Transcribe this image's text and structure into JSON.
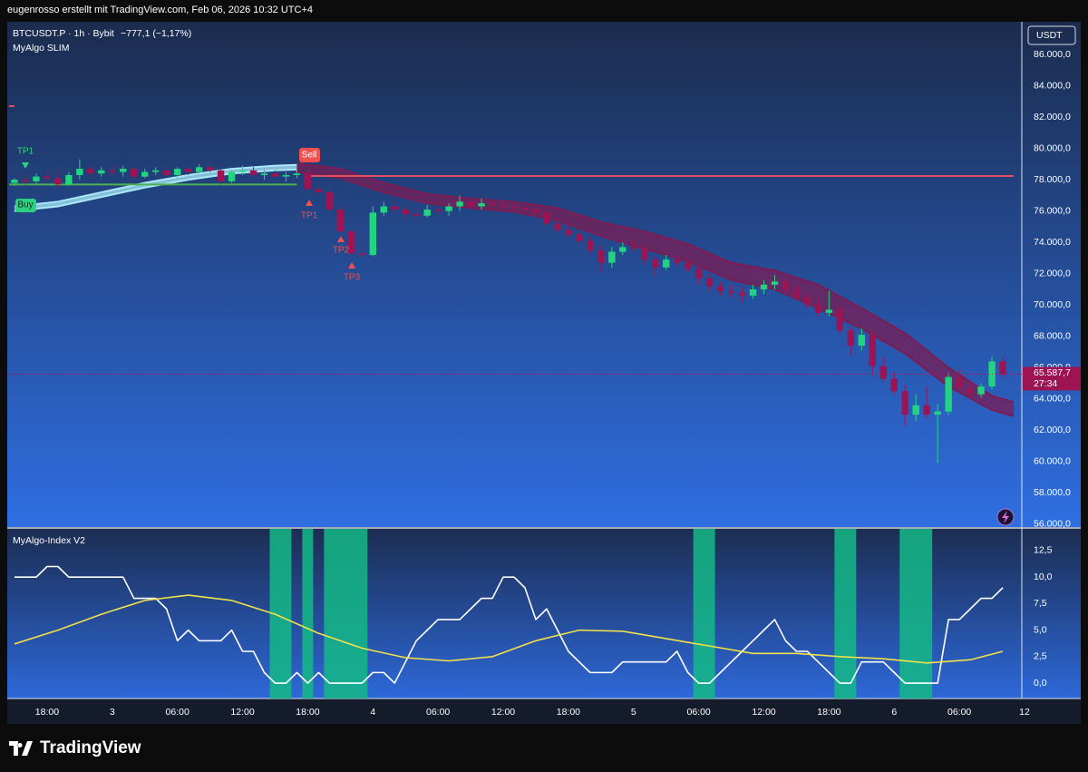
{
  "header": {
    "top_bar": "eugenrosso erstellt mit TradingView.com, Feb 06, 2026 10:32 UTC+4",
    "symbol": "BTCUSDT.P · 1h · Bybit",
    "change": "−777,1 (−1,17%)",
    "indicator": "MyAlgo SLIM",
    "currency": "USDT"
  },
  "footer": {
    "brand": "TradingView"
  },
  "chart_data": [
    {
      "type": "candlestick",
      "up_color": "#22d37f",
      "down_color": "#9c1552",
      "xlim": [
        -3.5,
        90
      ],
      "ylim": [
        55880,
        88030
      ],
      "grid": false,
      "yticks": [
        {
          "value": 56000,
          "label": "56.000,0"
        },
        {
          "value": 58000,
          "label": "58.000,0"
        },
        {
          "value": 60000,
          "label": "60.000,0"
        },
        {
          "value": 62000,
          "label": "62.000,0"
        },
        {
          "value": 64000,
          "label": "64.000,0"
        },
        {
          "value": 66000,
          "label": "66.000,0"
        },
        {
          "value": 68000,
          "label": "68.000,0"
        },
        {
          "value": 70000,
          "label": "70.000,0"
        },
        {
          "value": 72000,
          "label": "72.000,0"
        },
        {
          "value": 74000,
          "label": "74.000,0"
        },
        {
          "value": 76000,
          "label": "76.000,0"
        },
        {
          "value": 78000,
          "label": "78.000,0"
        },
        {
          "value": 80000,
          "label": "80.000,0"
        },
        {
          "value": 82000,
          "label": "82.000,0"
        },
        {
          "value": 84000,
          "label": "84.000,0"
        },
        {
          "value": 86000,
          "label": "86.000,0"
        }
      ],
      "x": [
        -3,
        -2,
        -1,
        0,
        1,
        2,
        3,
        4,
        5,
        6,
        7,
        8,
        9,
        10,
        11,
        12,
        13,
        14,
        15,
        16,
        17,
        18,
        19,
        20,
        21,
        22,
        23,
        24,
        25,
        26,
        27,
        28,
        29,
        30,
        31,
        32,
        33,
        34,
        35,
        36,
        37,
        38,
        39,
        40,
        41,
        42,
        43,
        44,
        45,
        46,
        47,
        48,
        49,
        50,
        51,
        52,
        53,
        54,
        55,
        56,
        57,
        58,
        59,
        60,
        61,
        62,
        63,
        64,
        65,
        66,
        67,
        68,
        69,
        70,
        71,
        72,
        73,
        74,
        75,
        76,
        77,
        78,
        79,
        80,
        81,
        82,
        83,
        84,
        85,
        86,
        87,
        88
      ],
      "open": [
        77800,
        78000,
        77900,
        78200,
        78100,
        77700,
        78300,
        78700,
        78400,
        78600,
        78500,
        78700,
        78200,
        78500,
        78600,
        78300,
        78700,
        78500,
        78800,
        78600,
        77900,
        78500,
        78600,
        78300,
        78400,
        78200,
        78300,
        78400,
        77400,
        77200,
        76100,
        74700,
        73300,
        73200,
        75900,
        76300,
        76100,
        75800,
        75700,
        76100,
        76000,
        76300,
        76600,
        76300,
        76500,
        76400,
        76300,
        76200,
        76100,
        75900,
        75200,
        74800,
        74500,
        74100,
        73500,
        72700,
        73400,
        73700,
        73600,
        72900,
        72400,
        72900,
        72700,
        72300,
        71700,
        71200,
        70900,
        70800,
        70600,
        71000,
        71300,
        71500,
        71000,
        70500,
        70000,
        69500,
        69700,
        68400,
        67400,
        68100,
        66100,
        65300,
        64500,
        63000,
        63600,
        63000,
        63200,
        65400,
        64700,
        64300,
        64800,
        66400
      ],
      "high": [
        78100,
        78300,
        78400,
        78500,
        78600,
        78500,
        79300,
        78900,
        78800,
        79000,
        78900,
        78800,
        78700,
        78800,
        78900,
        78800,
        78900,
        79000,
        79200,
        78700,
        78600,
        78900,
        78800,
        78700,
        78600,
        78500,
        78600,
        78500,
        77900,
        77500,
        76300,
        74900,
        74800,
        76300,
        76600,
        76900,
        76400,
        76200,
        76400,
        76800,
        76500,
        77000,
        76900,
        76800,
        76700,
        76600,
        76500,
        76400,
        76300,
        76000,
        75600,
        75300,
        74700,
        74400,
        73800,
        73700,
        74000,
        74200,
        73900,
        73100,
        73200,
        73100,
        73000,
        72500,
        72000,
        71500,
        71300,
        71200,
        71300,
        71600,
        71900,
        71700,
        71300,
        70800,
        70300,
        70900,
        70000,
        68600,
        68500,
        68300,
        66700,
        65700,
        64900,
        64300,
        64800,
        63700,
        65700,
        65900,
        65200,
        65000,
        66700,
        66700
      ],
      "low": [
        77600,
        77700,
        77800,
        77900,
        77500,
        77600,
        78000,
        78200,
        78200,
        78300,
        78200,
        78000,
        78100,
        78300,
        78200,
        78100,
        78300,
        78400,
        78500,
        77700,
        77800,
        78300,
        78100,
        78000,
        78100,
        77900,
        78100,
        77200,
        77000,
        75900,
        74400,
        72900,
        73000,
        73100,
        75700,
        75800,
        75500,
        75400,
        75600,
        75800,
        75700,
        76000,
        76100,
        76100,
        76200,
        76100,
        76000,
        75900,
        75800,
        75100,
        74600,
        74300,
        73900,
        73200,
        72100,
        72400,
        73200,
        73400,
        72600,
        71900,
        72200,
        72500,
        72100,
        71300,
        70900,
        70600,
        70500,
        70200,
        70400,
        70700,
        71000,
        70800,
        70300,
        69800,
        69300,
        69300,
        68200,
        66800,
        67100,
        65600,
        65100,
        64300,
        62300,
        62600,
        62800,
        59900,
        63000,
        64400,
        64000,
        64100,
        64600,
        65400
      ],
      "close": [
        78000,
        77900,
        78200,
        78100,
        77700,
        78300,
        78700,
        78400,
        78600,
        78500,
        78700,
        78200,
        78500,
        78600,
        78300,
        78700,
        78500,
        78800,
        78600,
        77900,
        78500,
        78600,
        78300,
        78400,
        78200,
        78300,
        78400,
        77400,
        77200,
        76100,
        74700,
        73300,
        73200,
        75900,
        76300,
        76100,
        75800,
        75700,
        76100,
        76000,
        76300,
        76600,
        76300,
        76500,
        76400,
        76300,
        76200,
        76100,
        75900,
        75200,
        74800,
        74500,
        74100,
        73500,
        72700,
        73400,
        73700,
        73600,
        72900,
        72400,
        72900,
        72700,
        72300,
        71700,
        71200,
        70900,
        70800,
        70600,
        71000,
        71300,
        71500,
        71000,
        70500,
        70000,
        69500,
        69700,
        68400,
        67400,
        68100,
        66100,
        65300,
        64500,
        63000,
        63600,
        63000,
        63200,
        65400,
        64700,
        64300,
        64800,
        66400,
        65587.7
      ],
      "ribbons": [
        {
          "color": "#a8e8f8",
          "x": [
            -3,
            1,
            5,
            9,
            13,
            17,
            21,
            23
          ],
          "upper": [
            76300,
            76600,
            77200,
            77800,
            78300,
            78700,
            78900,
            78950
          ],
          "lower": [
            76000,
            76300,
            76900,
            77500,
            78000,
            78400,
            78600,
            78650
          ]
        },
        {
          "color": "#7a1d55",
          "x": [
            23,
            27,
            31,
            35,
            39,
            43,
            47,
            51,
            55,
            59,
            63,
            67,
            71,
            75,
            79,
            83,
            87,
            89
          ],
          "upper": [
            79050,
            78700,
            77800,
            77100,
            76800,
            76600,
            76200,
            75300,
            74700,
            73900,
            72700,
            72200,
            71300,
            69800,
            68200,
            66000,
            64200,
            63800
          ],
          "lower": [
            78500,
            78100,
            77200,
            76500,
            76200,
            75950,
            75400,
            74400,
            73600,
            72800,
            71600,
            71000,
            69800,
            68500,
            66900,
            64800,
            63300,
            62900
          ]
        }
      ],
      "levels": [
        {
          "value": 77700,
          "color": "#4caf50"
        },
        {
          "value": 78240,
          "color": "#e0505e"
        }
      ],
      "signals": [
        {
          "label": "TP1",
          "color": "#2bd17e"
        },
        {
          "label": "Buy",
          "color": "#2bd17e"
        },
        {
          "label": "Sell",
          "color": "#f0504f"
        },
        {
          "label": "TP1",
          "color": "#f0504f"
        },
        {
          "label": "TP2",
          "color": "#f0504f"
        },
        {
          "label": "TP3",
          "color": "#f0504f"
        }
      ],
      "last_price": {
        "value": 65587.7,
        "label": "65.587,7"
      },
      "countdown": "27:34"
    },
    {
      "type": "line",
      "title": "MyAlgo-Index V2",
      "xlim": [
        -3.5,
        90
      ],
      "ylim": [
        -1.45,
        14.55
      ],
      "xticks": [
        {
          "value": 0,
          "label": "18:00"
        },
        {
          "value": 6,
          "label": "3"
        },
        {
          "value": 12,
          "label": "06:00"
        },
        {
          "value": 18,
          "label": "12:00"
        },
        {
          "value": 24,
          "label": "18:00"
        },
        {
          "value": 30,
          "label": "4"
        },
        {
          "value": 36,
          "label": "06:00"
        },
        {
          "value": 42,
          "label": "12:00"
        },
        {
          "value": 48,
          "label": "18:00"
        },
        {
          "value": 54,
          "label": "5"
        },
        {
          "value": 60,
          "label": "06:00"
        },
        {
          "value": 66,
          "label": "12:00"
        },
        {
          "value": 72,
          "label": "18:00"
        },
        {
          "value": 78,
          "label": "6"
        },
        {
          "value": 84,
          "label": "06:00"
        },
        {
          "value": 90,
          "label": "12"
        }
      ],
      "yticks": [
        {
          "value": 0,
          "label": "0,0"
        },
        {
          "value": 2.5,
          "label": "2,5"
        },
        {
          "value": 5,
          "label": "5,0"
        },
        {
          "value": 7.5,
          "label": "7,5"
        },
        {
          "value": 10,
          "label": "10,0"
        },
        {
          "value": 12.5,
          "label": "12,5"
        }
      ],
      "zone_color": "#14b886",
      "zones": [
        [
          20.5,
          22.5
        ],
        [
          23.5,
          24.5
        ],
        [
          25.5,
          29.5
        ],
        [
          59.5,
          61.5
        ],
        [
          72.5,
          74.5
        ],
        [
          78.5,
          81.5
        ]
      ],
      "series": [
        {
          "color": "#ffffff",
          "x": [
            -3,
            -2,
            -1,
            0,
            1,
            2,
            3,
            4,
            5,
            6,
            7,
            8,
            9,
            10,
            11,
            12,
            13,
            14,
            15,
            16,
            17,
            18,
            19,
            20,
            21,
            22,
            23,
            24,
            25,
            26,
            27,
            28,
            29,
            30,
            31,
            32,
            33,
            34,
            35,
            36,
            37,
            38,
            39,
            40,
            41,
            42,
            43,
            44,
            45,
            46,
            47,
            48,
            49,
            50,
            51,
            52,
            53,
            54,
            55,
            56,
            57,
            58,
            59,
            60,
            61,
            62,
            63,
            64,
            65,
            66,
            67,
            68,
            69,
            70,
            71,
            72,
            73,
            74,
            75,
            76,
            77,
            78,
            79,
            80,
            81,
            82,
            83,
            84,
            85,
            86,
            87,
            88
          ],
          "values": [
            10,
            10,
            10,
            11,
            11,
            10,
            10,
            10,
            10,
            10,
            10,
            8,
            8,
            8,
            7,
            4,
            5,
            4,
            4,
            4,
            5,
            3,
            3,
            1,
            0,
            0,
            1,
            0,
            1,
            0,
            0,
            0,
            0,
            1,
            1,
            0,
            2,
            4,
            5,
            6,
            6,
            6,
            7,
            8,
            8,
            10,
            10,
            9,
            6,
            7,
            5,
            3,
            2,
            1,
            1,
            1,
            2,
            2,
            2,
            2,
            2,
            3,
            1,
            0,
            0,
            1,
            2,
            3,
            4,
            5,
            6,
            4,
            3,
            3,
            2,
            1,
            0,
            0,
            2,
            2,
            2,
            1,
            0,
            0,
            0,
            0,
            6,
            6,
            7,
            8,
            8,
            9
          ]
        },
        {
          "color": "#f2e14a",
          "x": [
            -3,
            1,
            5,
            9,
            13,
            17,
            21,
            25,
            29,
            33,
            37,
            41,
            45,
            49,
            53,
            57,
            61,
            65,
            69,
            73,
            77,
            81,
            85,
            88
          ],
          "values": [
            3.7,
            5.0,
            6.5,
            7.8,
            8.3,
            7.8,
            6.5,
            4.7,
            3.3,
            2.4,
            2.1,
            2.5,
            4.0,
            5.0,
            4.9,
            4.2,
            3.5,
            2.8,
            2.8,
            2.5,
            2.3,
            1.9,
            2.2,
            3.0
          ]
        }
      ]
    }
  ]
}
